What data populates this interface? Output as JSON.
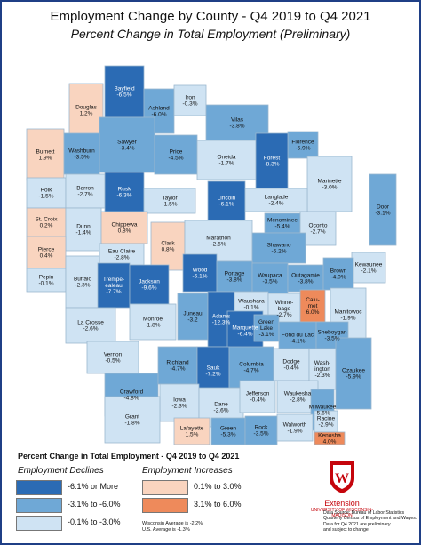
{
  "title": "Employment Change by County - Q4 2019 to Q4 2021",
  "subtitle": "Percent Change in Total Employment (Preliminary)",
  "colors": {
    "dark_blue": "#2b6bb4",
    "mid_blue": "#6fa8d6",
    "light_blue": "#cfe3f3",
    "light_peach": "#f9d4bf",
    "orange": "#ee8a5b",
    "water": "#ffffff",
    "frame": "#1f3f86"
  },
  "counties": [
    {
      "name": "Douglas",
      "value": "1.2%",
      "cls": "pe"
    },
    {
      "name": "Bayfield",
      "value": "-6.5%",
      "cls": "db"
    },
    {
      "name": "Ashland",
      "value": "-6.0%",
      "cls": "mb"
    },
    {
      "name": "Iron",
      "value": "-0.3%",
      "cls": "lb"
    },
    {
      "name": "Vilas",
      "value": "-3.8%",
      "cls": "mb"
    },
    {
      "name": "Florence",
      "value": "-5.9%",
      "cls": "mb"
    },
    {
      "name": "Burnett",
      "value": "1.9%",
      "cls": "pe"
    },
    {
      "name": "Washburn",
      "value": "-3.5%",
      "cls": "mb"
    },
    {
      "name": "Sawyer",
      "value": "-3.4%",
      "cls": "mb"
    },
    {
      "name": "Price",
      "value": "-4.5%",
      "cls": "mb"
    },
    {
      "name": "Oneida",
      "value": "-1.7%",
      "cls": "lb"
    },
    {
      "name": "Forest",
      "value": "-8.3%",
      "cls": "db"
    },
    {
      "name": "Marinette",
      "value": "-3.0%",
      "cls": "lb"
    },
    {
      "name": "Polk",
      "value": "-1.5%",
      "cls": "lb"
    },
    {
      "name": "Barron",
      "value": "-2.7%",
      "cls": "lb"
    },
    {
      "name": "Rusk",
      "value": "-6.3%",
      "cls": "db"
    },
    {
      "name": "Taylor",
      "value": "-1.5%",
      "cls": "lb"
    },
    {
      "name": "Lincoln",
      "value": "-6.1%",
      "cls": "db"
    },
    {
      "name": "Langlade",
      "value": "-2.4%",
      "cls": "lb"
    },
    {
      "name": "St. Croix",
      "value": "0.2%",
      "cls": "pe"
    },
    {
      "name": "Dunn",
      "value": "-1.4%",
      "cls": "lb"
    },
    {
      "name": "Chippewa",
      "value": "0.8%",
      "cls": "pe"
    },
    {
      "name": "Menominee",
      "value": "-5.4%",
      "cls": "mb"
    },
    {
      "name": "Oconto",
      "value": "-2.7%",
      "cls": "lb"
    },
    {
      "name": "Door",
      "value": "-3.1%",
      "cls": "mb"
    },
    {
      "name": "Pierce",
      "value": "0.4%",
      "cls": "pe"
    },
    {
      "name": "Eau Claire",
      "value": "-2.8%",
      "cls": "lb"
    },
    {
      "name": "Clark",
      "value": "0.8%",
      "cls": "pe"
    },
    {
      "name": "Marathon",
      "value": "-2.5%",
      "cls": "lb"
    },
    {
      "name": "Shawano",
      "value": "-5.2%",
      "cls": "mb"
    },
    {
      "name": "Kewaunee",
      "value": "-2.1%",
      "cls": "lb"
    },
    {
      "name": "Pepin",
      "value": "-0.1%",
      "cls": "lb"
    },
    {
      "name": "Buffalo",
      "value": "-2.3%",
      "cls": "lb"
    },
    {
      "name": "Trempealeau",
      "value": "-7.7%",
      "cls": "db",
      "display": "Trempe-\nealeau"
    },
    {
      "name": "Jackson",
      "value": "-9.6%",
      "cls": "db"
    },
    {
      "name": "Wood",
      "value": "-6.1%",
      "cls": "db"
    },
    {
      "name": "Portage",
      "value": "-3.8%",
      "cls": "mb"
    },
    {
      "name": "Waupaca",
      "value": "-3.5%",
      "cls": "mb"
    },
    {
      "name": "Outagamie",
      "value": "-3.8%",
      "cls": "mb"
    },
    {
      "name": "Brown",
      "value": "-4.0%",
      "cls": "mb"
    },
    {
      "name": "Manitowoc",
      "value": "-1.9%",
      "cls": "lb"
    },
    {
      "name": "La Crosse",
      "value": "-2.6%",
      "cls": "lb"
    },
    {
      "name": "Monroe",
      "value": "-1.8%",
      "cls": "lb"
    },
    {
      "name": "Juneau",
      "value": "-3.2",
      "cls": "mb"
    },
    {
      "name": "Adams",
      "value": "-12.3%",
      "cls": "db"
    },
    {
      "name": "Waushara",
      "value": "-0.1%",
      "cls": "lb"
    },
    {
      "name": "Winnebago",
      "value": "-2.7%",
      "cls": "lb",
      "display": "Winne-\nbago"
    },
    {
      "name": "Calumet",
      "value": "6.0%",
      "cls": "or",
      "display": "Calu-\nmet"
    },
    {
      "name": "Marquette",
      "value": "-6.4%",
      "cls": "db"
    },
    {
      "name": "Green Lake",
      "value": "-3.1%",
      "cls": "mb",
      "display": "Green\nLake"
    },
    {
      "name": "Fond du Lac",
      "value": "-4.1%",
      "cls": "mb"
    },
    {
      "name": "Sheboygan",
      "value": "-3.5%",
      "cls": "mb"
    },
    {
      "name": "Vernon",
      "value": "-0.5%",
      "cls": "lb"
    },
    {
      "name": "Crawford",
      "value": "-4.8%",
      "cls": "mb"
    },
    {
      "name": "Richland",
      "value": "-4.7%",
      "cls": "mb"
    },
    {
      "name": "Sauk",
      "value": "-7.2%",
      "cls": "db"
    },
    {
      "name": "Columbia",
      "value": "-4.7%",
      "cls": "mb"
    },
    {
      "name": "Dodge",
      "value": "-0.4%",
      "cls": "lb"
    },
    {
      "name": "Washington",
      "value": "-2.3%",
      "cls": "lb",
      "display": "Wash-\nington"
    },
    {
      "name": "Ozaukee",
      "value": "-5.9%",
      "cls": "mb"
    },
    {
      "name": "Iowa",
      "value": "-2.3%",
      "cls": "lb"
    },
    {
      "name": "Dane",
      "value": "-2.6%",
      "cls": "lb"
    },
    {
      "name": "Jefferson",
      "value": "-0.4%",
      "cls": "lb"
    },
    {
      "name": "Waukesha",
      "value": "-2.8%",
      "cls": "lb"
    },
    {
      "name": "Milwaukee",
      "value": "-5.6%",
      "cls": "mb"
    },
    {
      "name": "Grant",
      "value": "-1.8%",
      "cls": "lb"
    },
    {
      "name": "Lafayette",
      "value": "1.5%",
      "cls": "pe"
    },
    {
      "name": "Green",
      "value": "-5.3%",
      "cls": "mb"
    },
    {
      "name": "Rock",
      "value": "-3.5%",
      "cls": "mb"
    },
    {
      "name": "Walworth",
      "value": "-1.9%",
      "cls": "lb"
    },
    {
      "name": "Racine",
      "value": "-2.9%",
      "cls": "lb"
    },
    {
      "name": "Kenosha",
      "value": "4.0%",
      "cls": "or"
    }
  ],
  "legend": {
    "title": "Percent Change in Total Employment - Q4 2019 to Q4 2021",
    "declines_header": "Employment Declines",
    "increases_header": "Employment Increases",
    "declines": [
      "-6.1% or More",
      "-3.1% to -6.0%",
      "-0.1% to -3.0%"
    ],
    "increases": [
      "0.1% to 3.0%",
      "3.1% to 6.0%"
    ],
    "averages": [
      "Wisconsin Average is -2.2%",
      "U.S. Average is -1.3%"
    ]
  },
  "branding": {
    "extension": "Extension",
    "university": "UNIVERSITY OF WISCONSIN-MADISON",
    "logo_letter": "W"
  },
  "source": [
    "Data Source: Bureau of Labor Statistics",
    "Quarterly Census of Employment and Wages.",
    "Data for Q4 2021 are preliminary",
    "and subject to change."
  ]
}
